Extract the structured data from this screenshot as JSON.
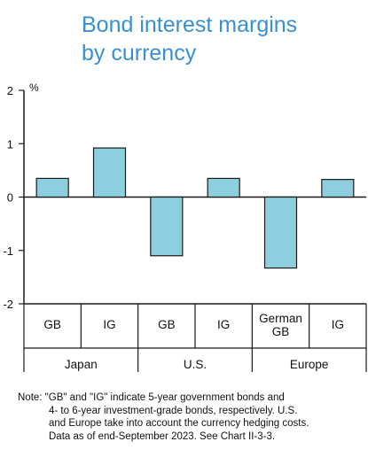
{
  "title_lines": [
    "Bond interest margins",
    "by currency"
  ],
  "colors": {
    "title": "#3a8fd0",
    "bar_fill": "#8ecfdf",
    "bar_stroke": "#1a1a1a",
    "axis": "#1a1a1a"
  },
  "chart_data": {
    "type": "bar",
    "title": "Bond interest margins by currency",
    "ylabel": "%",
    "ylim": [
      -2,
      2
    ],
    "yticks": [
      "2",
      "1",
      "0",
      "-1",
      "-2"
    ],
    "grid": false,
    "categories": [
      "GB",
      "IG",
      "GB",
      "IG",
      "German GB",
      "IG"
    ],
    "category_lines": [
      [
        "GB"
      ],
      [
        "IG"
      ],
      [
        "GB"
      ],
      [
        "IG"
      ],
      [
        "German",
        "GB"
      ],
      [
        "IG"
      ]
    ],
    "groups": [
      {
        "name": "Japan",
        "span": [
          0,
          1
        ]
      },
      {
        "name": "U.S.",
        "span": [
          2,
          3
        ]
      },
      {
        "name": "Europe",
        "span": [
          4,
          5
        ]
      }
    ],
    "values": [
      0.35,
      0.92,
      -1.1,
      0.35,
      -1.33,
      0.33
    ]
  },
  "note": {
    "first": "Note: \"GB\" and \"IG\" indicate 5-year government bonds and",
    "rest": [
      "4- to 6-year investment-grade bonds, respectively. U.S.",
      "and Europe take into account the currency hedging costs.",
      "Data as of end-September 2023. See Chart II-3-3."
    ]
  }
}
